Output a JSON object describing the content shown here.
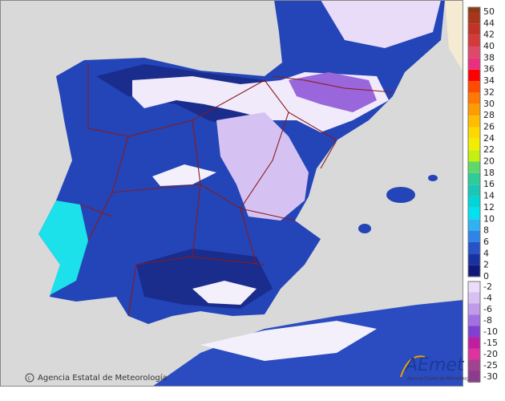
{
  "legend": {
    "entries": [
      {
        "label": "50",
        "color": "#8b3a12"
      },
      {
        "label": "44",
        "color": "#a8361c"
      },
      {
        "label": "42",
        "color": "#c23226"
      },
      {
        "label": "40",
        "color": "#d43a3a"
      },
      {
        "label": "38",
        "color": "#e04868"
      },
      {
        "label": "36",
        "color": "#ea2f80"
      },
      {
        "label": "34",
        "color": "#ff0000"
      },
      {
        "label": "32",
        "color": "#ff4a00"
      },
      {
        "label": "30",
        "color": "#ff7800"
      },
      {
        "label": "28",
        "color": "#ff9c00"
      },
      {
        "label": "26",
        "color": "#ffbc00"
      },
      {
        "label": "24",
        "color": "#ffd800"
      },
      {
        "label": "22",
        "color": "#f2ee00"
      },
      {
        "label": "20",
        "color": "#c6ee10"
      },
      {
        "label": "18",
        "color": "#5ed86a"
      },
      {
        "label": "16",
        "color": "#2ecc96"
      },
      {
        "label": "14",
        "color": "#1cc6b6"
      },
      {
        "label": "12",
        "color": "#00d6d6"
      },
      {
        "label": "10",
        "color": "#00e2f2"
      },
      {
        "label": "8",
        "color": "#2fb2f2"
      },
      {
        "label": "6",
        "color": "#2f84e8"
      },
      {
        "label": "4",
        "color": "#2752c8"
      },
      {
        "label": "2",
        "color": "#1832a2"
      },
      {
        "label": "0",
        "color": "#10197a"
      },
      {
        "label": "-2",
        "color": "#ecdcfa"
      },
      {
        "label": "-4",
        "color": "#d8c0f2"
      },
      {
        "label": "-6",
        "color": "#c29aea"
      },
      {
        "label": "-8",
        "color": "#a270e2"
      },
      {
        "label": "-10",
        "color": "#8240d2"
      },
      {
        "label": "-15",
        "color": "#c01ea2"
      },
      {
        "label": "-20",
        "color": "#e0329e"
      },
      {
        "label": "-25",
        "color": "#a24290"
      },
      {
        "label": "-30",
        "color": "#8e3a8e"
      }
    ]
  },
  "footer": {
    "copyright": "Agencia Estatal de Meteorología"
  },
  "logo": {
    "name": "AEmet",
    "subtitle": "Agencia Estatal de Meteorología"
  }
}
